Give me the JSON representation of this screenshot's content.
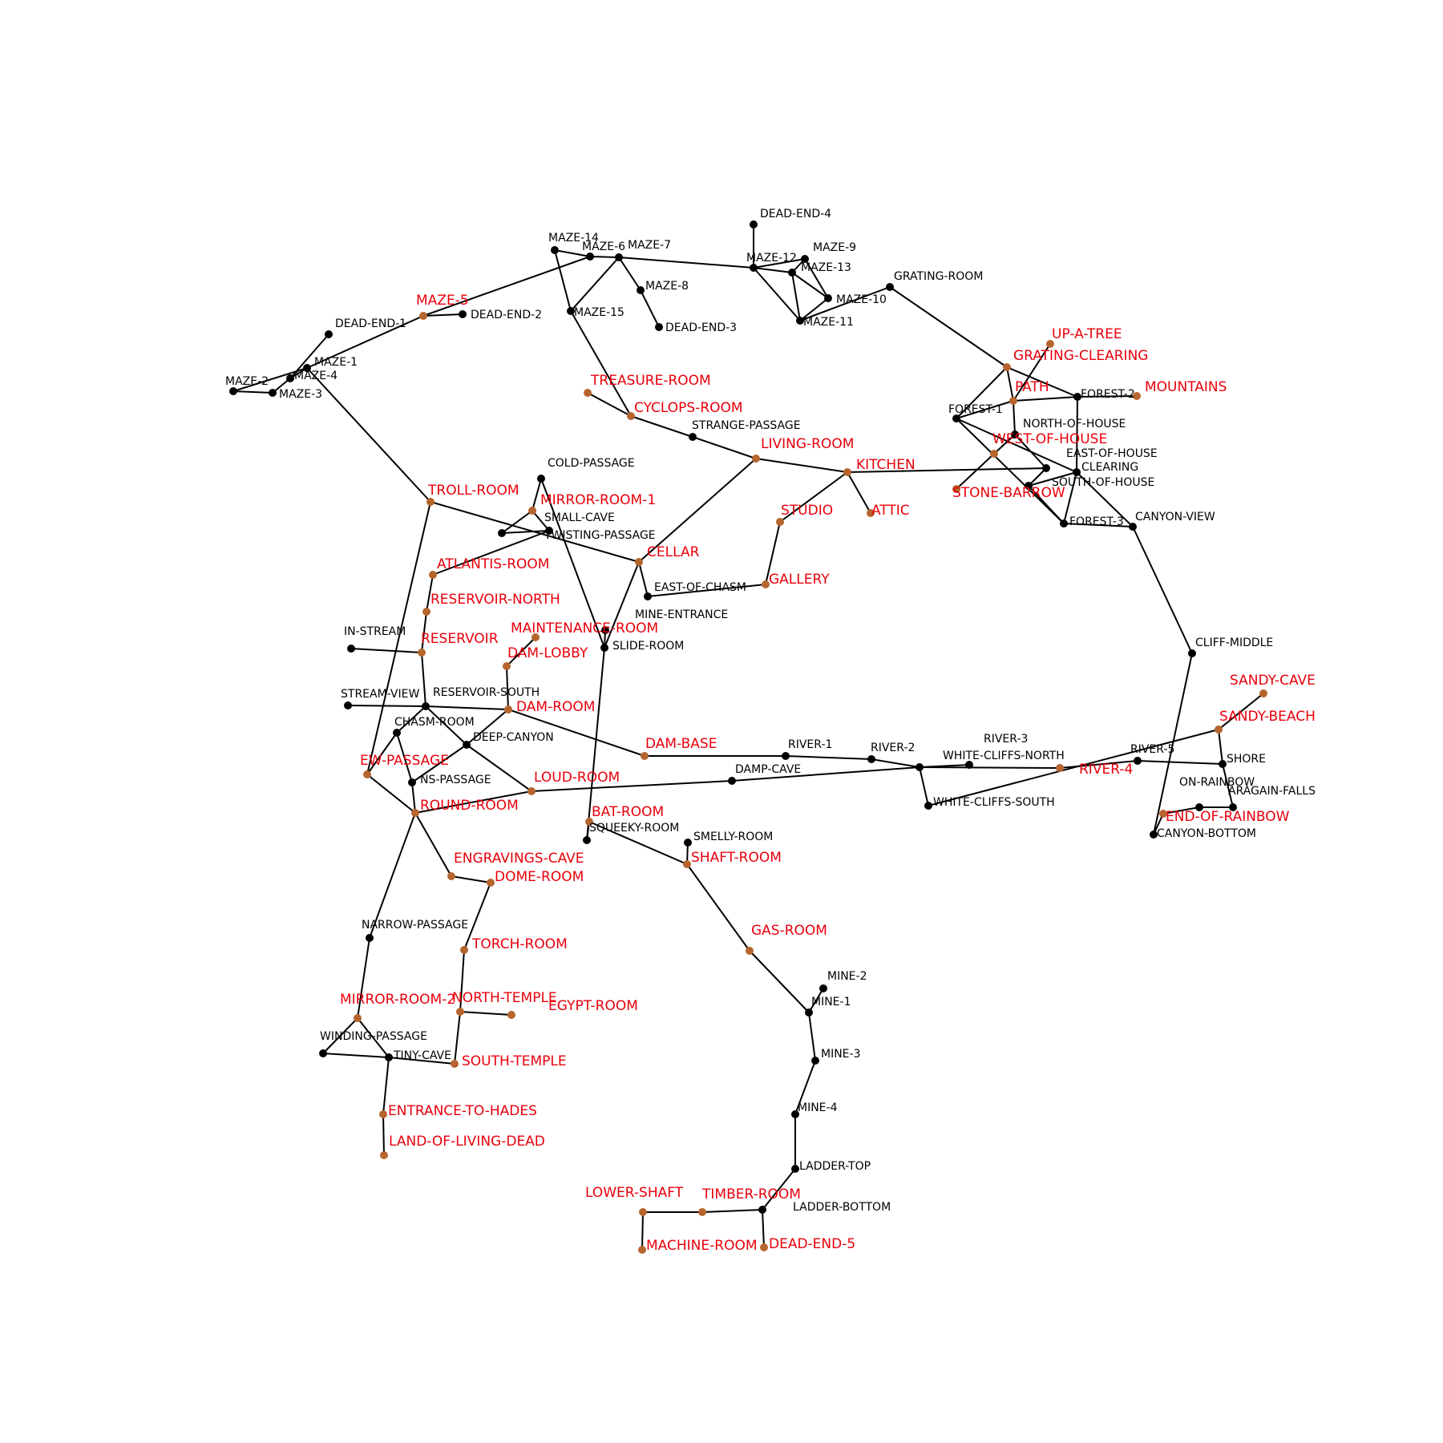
{
  "colors": {
    "edge": "#000000",
    "node_default": "#000000",
    "node_highlight": "#b5652d",
    "label_default": "#000000",
    "label_highlight": "#e8000b",
    "background": "#ffffff"
  },
  "nodes": [
    {
      "id": "DEAD-END-4",
      "label": "DEAD-END-4",
      "highlight": false
    },
    {
      "id": "MAZE-14",
      "label": "MAZE-14",
      "highlight": false
    },
    {
      "id": "MAZE-6",
      "label": "MAZE-6",
      "highlight": false
    },
    {
      "id": "MAZE-7",
      "label": "MAZE-7",
      "highlight": false
    },
    {
      "id": "MAZE-12",
      "label": "MAZE-12",
      "highlight": false
    },
    {
      "id": "MAZE-9",
      "label": "MAZE-9",
      "highlight": false
    },
    {
      "id": "MAZE-13",
      "label": "MAZE-13",
      "highlight": false
    },
    {
      "id": "MAZE-10",
      "label": "MAZE-10",
      "highlight": false
    },
    {
      "id": "MAZE-11",
      "label": "MAZE-11",
      "highlight": false
    },
    {
      "id": "MAZE-8",
      "label": "MAZE-8",
      "highlight": false
    },
    {
      "id": "DEAD-END-3",
      "label": "DEAD-END-3",
      "highlight": false
    },
    {
      "id": "MAZE-15",
      "label": "MAZE-15",
      "highlight": false
    },
    {
      "id": "GRATING-ROOM",
      "label": "GRATING-ROOM",
      "highlight": false
    },
    {
      "id": "MAZE-5",
      "label": "MAZE-5",
      "highlight": true
    },
    {
      "id": "DEAD-END-2",
      "label": "DEAD-END-2",
      "highlight": false
    },
    {
      "id": "DEAD-END-1",
      "label": "DEAD-END-1",
      "highlight": false
    },
    {
      "id": "MAZE-1",
      "label": "MAZE-1",
      "highlight": false
    },
    {
      "id": "MAZE-4",
      "label": "MAZE-4",
      "highlight": false
    },
    {
      "id": "MAZE-2",
      "label": "MAZE-2",
      "highlight": false
    },
    {
      "id": "MAZE-3",
      "label": "MAZE-3",
      "highlight": false
    },
    {
      "id": "UP-A-TREE",
      "label": "UP-A-TREE",
      "highlight": true
    },
    {
      "id": "GRATING-CLEARING",
      "label": "GRATING-CLEARING",
      "highlight": true
    },
    {
      "id": "PATH",
      "label": "PATH",
      "highlight": true
    },
    {
      "id": "FOREST-2",
      "label": "FOREST-2",
      "highlight": false
    },
    {
      "id": "MOUNTAINS",
      "label": "MOUNTAINS",
      "highlight": true
    },
    {
      "id": "FOREST-1",
      "label": "FOREST-1",
      "highlight": false
    },
    {
      "id": "NORTH-OF-HOUSE",
      "label": "NORTH-OF-HOUSE",
      "highlight": false
    },
    {
      "id": "WEST-OF-HOUSE",
      "label": "WEST-OF-HOUSE",
      "highlight": true
    },
    {
      "id": "EAST-OF-HOUSE",
      "label": "EAST-OF-HOUSE",
      "highlight": false
    },
    {
      "id": "CLEARING",
      "label": "CLEARING",
      "highlight": false
    },
    {
      "id": "SOUTH-OF-HOUSE",
      "label": "SOUTH-OF-HOUSE",
      "highlight": false
    },
    {
      "id": "STONE-BARROW",
      "label": "STONE-BARROW",
      "highlight": true
    },
    {
      "id": "FOREST-3",
      "label": "FOREST-3",
      "highlight": false
    },
    {
      "id": "CANYON-VIEW",
      "label": "CANYON-VIEW",
      "highlight": false
    },
    {
      "id": "TREASURE-ROOM",
      "label": "TREASURE-ROOM",
      "highlight": true
    },
    {
      "id": "CYCLOPS-ROOM",
      "label": "CYCLOPS-ROOM",
      "highlight": true
    },
    {
      "id": "STRANGE-PASSAGE",
      "label": "STRANGE-PASSAGE",
      "highlight": false
    },
    {
      "id": "LIVING-ROOM",
      "label": "LIVING-ROOM",
      "highlight": true
    },
    {
      "id": "KITCHEN",
      "label": "KITCHEN",
      "highlight": true
    },
    {
      "id": "ATTIC",
      "label": "ATTIC",
      "highlight": true
    },
    {
      "id": "STUDIO",
      "label": "STUDIO",
      "highlight": true
    },
    {
      "id": "COLD-PASSAGE",
      "label": "COLD-PASSAGE",
      "highlight": false
    },
    {
      "id": "TROLL-ROOM",
      "label": "TROLL-ROOM",
      "highlight": true
    },
    {
      "id": "MIRROR-ROOM-1",
      "label": "MIRROR-ROOM-1",
      "highlight": true
    },
    {
      "id": "SMALL-CAVE",
      "label": "SMALL-CAVE",
      "highlight": false
    },
    {
      "id": "TWISTING-PASSAGE",
      "label": "TWISTING-PASSAGE",
      "highlight": false
    },
    {
      "id": "CELLAR",
      "label": "CELLAR",
      "highlight": true
    },
    {
      "id": "ATLANTIS-ROOM",
      "label": "ATLANTIS-ROOM",
      "highlight": true
    },
    {
      "id": "EAST-OF-CHASM",
      "label": "EAST-OF-CHASM",
      "highlight": false
    },
    {
      "id": "GALLERY",
      "label": "GALLERY",
      "highlight": true
    },
    {
      "id": "RESERVOIR-NORTH",
      "label": "RESERVOIR-NORTH",
      "highlight": true
    },
    {
      "id": "MINE-ENTRANCE",
      "label": "MINE-ENTRANCE",
      "highlight": false
    },
    {
      "id": "IN-STREAM",
      "label": "IN-STREAM",
      "highlight": false
    },
    {
      "id": "RESERVOIR",
      "label": "RESERVOIR",
      "highlight": true
    },
    {
      "id": "MAINTENANCE-ROOM",
      "label": "MAINTENANCE-ROOM",
      "highlight": true
    },
    {
      "id": "SLIDE-ROOM",
      "label": "SLIDE-ROOM",
      "highlight": false
    },
    {
      "id": "DAM-LOBBY",
      "label": "DAM-LOBBY",
      "highlight": true
    },
    {
      "id": "CLIFF-MIDDLE",
      "label": "CLIFF-MIDDLE",
      "highlight": false
    },
    {
      "id": "SANDY-CAVE",
      "label": "SANDY-CAVE",
      "highlight": true
    },
    {
      "id": "STREAM-VIEW",
      "label": "STREAM-VIEW",
      "highlight": false
    },
    {
      "id": "RESERVOIR-SOUTH",
      "label": "RESERVOIR-SOUTH",
      "highlight": false
    },
    {
      "id": "DAM-ROOM",
      "label": "DAM-ROOM",
      "highlight": true
    },
    {
      "id": "SANDY-BEACH",
      "label": "SANDY-BEACH",
      "highlight": true
    },
    {
      "id": "CHASM-ROOM",
      "label": "CHASM-ROOM",
      "highlight": false
    },
    {
      "id": "DEEP-CANYON",
      "label": "DEEP-CANYON",
      "highlight": false
    },
    {
      "id": "DAM-BASE",
      "label": "DAM-BASE",
      "highlight": true
    },
    {
      "id": "RIVER-1",
      "label": "RIVER-1",
      "highlight": false
    },
    {
      "id": "RIVER-2",
      "label": "RIVER-2",
      "highlight": false
    },
    {
      "id": "RIVER-3",
      "label": "RIVER-3",
      "highlight": false
    },
    {
      "id": "WHITE-CLIFFS-NORTH",
      "label": "WHITE-CLIFFS-NORTH",
      "highlight": false
    },
    {
      "id": "RIVER-4",
      "label": "RIVER-4",
      "highlight": true
    },
    {
      "id": "RIVER-5",
      "label": "RIVER-5",
      "highlight": false
    },
    {
      "id": "SHORE",
      "label": "SHORE",
      "highlight": false
    },
    {
      "id": "EW-PASSAGE",
      "label": "EW-PASSAGE",
      "highlight": true
    },
    {
      "id": "NS-PASSAGE",
      "label": "NS-PASSAGE",
      "highlight": false
    },
    {
      "id": "LOUD-ROOM",
      "label": "LOUD-ROOM",
      "highlight": true
    },
    {
      "id": "DAMP-CAVE",
      "label": "DAMP-CAVE",
      "highlight": false
    },
    {
      "id": "ON-RAINBOW",
      "label": "ON-RAINBOW",
      "highlight": false
    },
    {
      "id": "ARAGAIN-FALLS",
      "label": "ARAGAIN-FALLS",
      "highlight": false
    },
    {
      "id": "WHITE-CLIFFS-SOUTH",
      "label": "WHITE-CLIFFS-SOUTH",
      "highlight": false
    },
    {
      "id": "ROUND-ROOM",
      "label": "ROUND-ROOM",
      "highlight": true
    },
    {
      "id": "BAT-ROOM",
      "label": "BAT-ROOM",
      "highlight": true
    },
    {
      "id": "END-OF-RAINBOW",
      "label": "END-OF-RAINBOW",
      "highlight": true
    },
    {
      "id": "CANYON-BOTTOM",
      "label": "CANYON-BOTTOM",
      "highlight": false
    },
    {
      "id": "SQUEEKY-ROOM",
      "label": "SQUEEKY-ROOM",
      "highlight": false
    },
    {
      "id": "SMELLY-ROOM",
      "label": "SMELLY-ROOM",
      "highlight": false
    },
    {
      "id": "SHAFT-ROOM",
      "label": "SHAFT-ROOM",
      "highlight": true
    },
    {
      "id": "ENGRAVINGS-CAVE",
      "label": "ENGRAVINGS-CAVE",
      "highlight": true
    },
    {
      "id": "DOME-ROOM",
      "label": "DOME-ROOM",
      "highlight": true
    },
    {
      "id": "GAS-ROOM",
      "label": "GAS-ROOM",
      "highlight": true
    },
    {
      "id": "NARROW-PASSAGE",
      "label": "NARROW-PASSAGE",
      "highlight": false
    },
    {
      "id": "TORCH-ROOM",
      "label": "TORCH-ROOM",
      "highlight": true
    },
    {
      "id": "MINE-2",
      "label": "MINE-2",
      "highlight": false
    },
    {
      "id": "MINE-1",
      "label": "MINE-1",
      "highlight": false
    },
    {
      "id": "MIRROR-ROOM-2",
      "label": "MIRROR-ROOM-2",
      "highlight": true
    },
    {
      "id": "NORTH-TEMPLE",
      "label": "NORTH-TEMPLE",
      "highlight": true
    },
    {
      "id": "EGYPT-ROOM",
      "label": "EGYPT-ROOM",
      "highlight": true
    },
    {
      "id": "WINDING-PASSAGE",
      "label": "WINDING-PASSAGE",
      "highlight": false
    },
    {
      "id": "TINY-CAVE",
      "label": "TINY-CAVE",
      "highlight": false
    },
    {
      "id": "SOUTH-TEMPLE",
      "label": "SOUTH-TEMPLE",
      "highlight": true
    },
    {
      "id": "MINE-3",
      "label": "MINE-3",
      "highlight": false
    },
    {
      "id": "ENTRANCE-TO-HADES",
      "label": "ENTRANCE-TO-HADES",
      "highlight": true
    },
    {
      "id": "MINE-4",
      "label": "MINE-4",
      "highlight": false
    },
    {
      "id": "LAND-OF-LIVING-DEAD",
      "label": "LAND-OF-LIVING-DEAD",
      "highlight": true
    },
    {
      "id": "LADDER-TOP",
      "label": "LADDER-TOP",
      "highlight": false
    },
    {
      "id": "LOWER-SHAFT",
      "label": "LOWER-SHAFT",
      "highlight": true
    },
    {
      "id": "TIMBER-ROOM",
      "label": "TIMBER-ROOM",
      "highlight": true
    },
    {
      "id": "LADDER-BOTTOM",
      "label": "LADDER-BOTTOM",
      "highlight": false
    },
    {
      "id": "MACHINE-ROOM",
      "label": "MACHINE-ROOM",
      "highlight": true
    },
    {
      "id": "DEAD-END-5",
      "label": "DEAD-END-5",
      "highlight": true
    }
  ],
  "edges": [
    [
      "DEAD-END-4",
      "MAZE-12"
    ],
    [
      "MAZE-14",
      "MAZE-6"
    ],
    [
      "MAZE-14",
      "MAZE-15"
    ],
    [
      "MAZE-6",
      "MAZE-7"
    ],
    [
      "MAZE-6",
      "MAZE-5"
    ],
    [
      "MAZE-7",
      "MAZE-12"
    ],
    [
      "MAZE-7",
      "MAZE-8"
    ],
    [
      "MAZE-7",
      "MAZE-15"
    ],
    [
      "MAZE-8",
      "DEAD-END-3"
    ],
    [
      "MAZE-15",
      "CYCLOPS-ROOM"
    ],
    [
      "MAZE-12",
      "MAZE-9"
    ],
    [
      "MAZE-12",
      "MAZE-13"
    ],
    [
      "MAZE-12",
      "MAZE-11"
    ],
    [
      "MAZE-9",
      "MAZE-13"
    ],
    [
      "MAZE-9",
      "MAZE-10"
    ],
    [
      "MAZE-13",
      "MAZE-10"
    ],
    [
      "MAZE-13",
      "MAZE-11"
    ],
    [
      "MAZE-10",
      "MAZE-11"
    ],
    [
      "MAZE-11",
      "GRATING-ROOM"
    ],
    [
      "GRATING-ROOM",
      "GRATING-CLEARING"
    ],
    [
      "MAZE-5",
      "DEAD-END-2"
    ],
    [
      "MAZE-5",
      "MAZE-1"
    ],
    [
      "DEAD-END-1",
      "MAZE-4"
    ],
    [
      "MAZE-1",
      "MAZE-2"
    ],
    [
      "MAZE-1",
      "MAZE-4"
    ],
    [
      "MAZE-1",
      "TROLL-ROOM"
    ],
    [
      "MAZE-4",
      "MAZE-3"
    ],
    [
      "MAZE-2",
      "MAZE-3"
    ],
    [
      "UP-A-TREE",
      "PATH"
    ],
    [
      "GRATING-CLEARING",
      "PATH"
    ],
    [
      "GRATING-CLEARING",
      "FOREST-1"
    ],
    [
      "GRATING-CLEARING",
      "FOREST-2"
    ],
    [
      "PATH",
      "FOREST-2"
    ],
    [
      "PATH",
      "FOREST-1"
    ],
    [
      "PATH",
      "NORTH-OF-HOUSE"
    ],
    [
      "FOREST-2",
      "MOUNTAINS"
    ],
    [
      "FOREST-2",
      "CLEARING"
    ],
    [
      "FOREST-1",
      "FOREST-3"
    ],
    [
      "FOREST-1",
      "CLEARING"
    ],
    [
      "NORTH-OF-HOUSE",
      "EAST-OF-HOUSE"
    ],
    [
      "NORTH-OF-HOUSE",
      "WEST-OF-HOUSE"
    ],
    [
      "WEST-OF-HOUSE",
      "STONE-BARROW"
    ],
    [
      "EAST-OF-HOUSE",
      "SOUTH-OF-HOUSE"
    ],
    [
      "EAST-OF-HOUSE",
      "KITCHEN"
    ],
    [
      "CLEARING",
      "SOUTH-OF-HOUSE"
    ],
    [
      "CLEARING",
      "FOREST-3"
    ],
    [
      "CLEARING",
      "CANYON-VIEW"
    ],
    [
      "SOUTH-OF-HOUSE",
      "FOREST-3"
    ],
    [
      "FOREST-3",
      "CANYON-VIEW"
    ],
    [
      "CANYON-VIEW",
      "CLIFF-MIDDLE"
    ],
    [
      "TREASURE-ROOM",
      "CYCLOPS-ROOM"
    ],
    [
      "CYCLOPS-ROOM",
      "STRANGE-PASSAGE"
    ],
    [
      "STRANGE-PASSAGE",
      "LIVING-ROOM"
    ],
    [
      "LIVING-ROOM",
      "KITCHEN"
    ],
    [
      "LIVING-ROOM",
      "CELLAR"
    ],
    [
      "KITCHEN",
      "ATTIC"
    ],
    [
      "KITCHEN",
      "STUDIO"
    ],
    [
      "STUDIO",
      "GALLERY"
    ],
    [
      "GALLERY",
      "EAST-OF-CHASM"
    ],
    [
      "EAST-OF-CHASM",
      "CELLAR"
    ],
    [
      "CELLAR",
      "TROLL-ROOM"
    ],
    [
      "CELLAR",
      "SLIDE-ROOM"
    ],
    [
      "COLD-PASSAGE",
      "MIRROR-ROOM-1"
    ],
    [
      "COLD-PASSAGE",
      "SLIDE-ROOM"
    ],
    [
      "MIRROR-ROOM-1",
      "SMALL-CAVE"
    ],
    [
      "MIRROR-ROOM-1",
      "TWISTING-PASSAGE"
    ],
    [
      "SMALL-CAVE",
      "TWISTING-PASSAGE"
    ],
    [
      "SMALL-CAVE",
      "ATLANTIS-ROOM"
    ],
    [
      "TROLL-ROOM",
      "EW-PASSAGE"
    ],
    [
      "ATLANTIS-ROOM",
      "RESERVOIR-NORTH"
    ],
    [
      "RESERVOIR-NORTH",
      "RESERVOIR"
    ],
    [
      "IN-STREAM",
      "RESERVOIR"
    ],
    [
      "RESERVOIR",
      "RESERVOIR-SOUTH"
    ],
    [
      "MINE-ENTRANCE",
      "SLIDE-ROOM"
    ],
    [
      "SLIDE-ROOM",
      "SQUEEKY-ROOM"
    ],
    [
      "MAINTENANCE-ROOM",
      "DAM-LOBBY"
    ],
    [
      "DAM-LOBBY",
      "DAM-ROOM"
    ],
    [
      "STREAM-VIEW",
      "RESERVOIR-SOUTH"
    ],
    [
      "RESERVOIR-SOUTH",
      "DAM-ROOM"
    ],
    [
      "RESERVOIR-SOUTH",
      "CHASM-ROOM"
    ],
    [
      "RESERVOIR-SOUTH",
      "DEEP-CANYON"
    ],
    [
      "DAM-ROOM",
      "DEEP-CANYON"
    ],
    [
      "DAM-ROOM",
      "DAM-BASE"
    ],
    [
      "CHASM-ROOM",
      "EW-PASSAGE"
    ],
    [
      "CHASM-ROOM",
      "NS-PASSAGE"
    ],
    [
      "DEEP-CANYON",
      "NS-PASSAGE"
    ],
    [
      "DEEP-CANYON",
      "LOUD-ROOM"
    ],
    [
      "DAM-BASE",
      "RIVER-1"
    ],
    [
      "RIVER-1",
      "RIVER-2"
    ],
    [
      "RIVER-2",
      "RIVER-3"
    ],
    [
      "RIVER-3",
      "WHITE-CLIFFS-NORTH"
    ],
    [
      "RIVER-3",
      "RIVER-4"
    ],
    [
      "RIVER-3",
      "WHITE-CLIFFS-SOUTH"
    ],
    [
      "RIVER-3",
      "DAMP-CAVE"
    ],
    [
      "RIVER-4",
      "RIVER-5"
    ],
    [
      "RIVER-5",
      "SHORE"
    ],
    [
      "SHORE",
      "SANDY-BEACH"
    ],
    [
      "SHORE",
      "ARAGAIN-FALLS"
    ],
    [
      "SANDY-BEACH",
      "SANDY-CAVE"
    ],
    [
      "SANDY-BEACH",
      "WHITE-CLIFFS-SOUTH"
    ],
    [
      "CLIFF-MIDDLE",
      "CANYON-BOTTOM"
    ],
    [
      "CANYON-BOTTOM",
      "END-OF-RAINBOW"
    ],
    [
      "END-OF-RAINBOW",
      "ON-RAINBOW"
    ],
    [
      "ON-RAINBOW",
      "ARAGAIN-FALLS"
    ],
    [
      "EW-PASSAGE",
      "ROUND-ROOM"
    ],
    [
      "NS-PASSAGE",
      "ROUND-ROOM"
    ],
    [
      "LOUD-ROOM",
      "ROUND-ROOM"
    ],
    [
      "LOUD-ROOM",
      "DAMP-CAVE"
    ],
    [
      "ROUND-ROOM",
      "ENGRAVINGS-CAVE"
    ],
    [
      "ROUND-ROOM",
      "NARROW-PASSAGE"
    ],
    [
      "BAT-ROOM",
      "SQUEEKY-ROOM"
    ],
    [
      "BAT-ROOM",
      "SHAFT-ROOM"
    ],
    [
      "SMELLY-ROOM",
      "SHAFT-ROOM"
    ],
    [
      "SHAFT-ROOM",
      "GAS-ROOM"
    ],
    [
      "GAS-ROOM",
      "MINE-1"
    ],
    [
      "ENGRAVINGS-CAVE",
      "DOME-ROOM"
    ],
    [
      "DOME-ROOM",
      "TORCH-ROOM"
    ],
    [
      "TORCH-ROOM",
      "NORTH-TEMPLE"
    ],
    [
      "NORTH-TEMPLE",
      "EGYPT-ROOM"
    ],
    [
      "NORTH-TEMPLE",
      "SOUTH-TEMPLE"
    ],
    [
      "SOUTH-TEMPLE",
      "TINY-CAVE"
    ],
    [
      "NARROW-PASSAGE",
      "MIRROR-ROOM-2"
    ],
    [
      "MIRROR-ROOM-2",
      "WINDING-PASSAGE"
    ],
    [
      "MIRROR-ROOM-2",
      "TINY-CAVE"
    ],
    [
      "WINDING-PASSAGE",
      "TINY-CAVE"
    ],
    [
      "TINY-CAVE",
      "ENTRANCE-TO-HADES"
    ],
    [
      "ENTRANCE-TO-HADES",
      "LAND-OF-LIVING-DEAD"
    ],
    [
      "MINE-1",
      "MINE-2"
    ],
    [
      "MINE-1",
      "MINE-3"
    ],
    [
      "MINE-3",
      "MINE-4"
    ],
    [
      "MINE-4",
      "LADDER-TOP"
    ],
    [
      "LADDER-TOP",
      "LADDER-BOTTOM"
    ],
    [
      "LADDER-BOTTOM",
      "TIMBER-ROOM"
    ],
    [
      "LADDER-BOTTOM",
      "DEAD-END-5"
    ],
    [
      "TIMBER-ROOM",
      "LOWER-SHAFT"
    ],
    [
      "LOWER-SHAFT",
      "MACHINE-ROOM"
    ]
  ]
}
